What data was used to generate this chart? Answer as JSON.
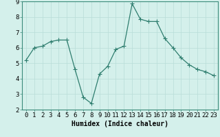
{
  "x": [
    0,
    1,
    2,
    3,
    4,
    5,
    6,
    7,
    8,
    9,
    10,
    11,
    12,
    13,
    14,
    15,
    16,
    17,
    18,
    19,
    20,
    21,
    22,
    23
  ],
  "y": [
    5.2,
    6.0,
    6.1,
    6.4,
    6.5,
    6.5,
    4.6,
    2.8,
    2.4,
    4.3,
    4.8,
    5.9,
    6.1,
    8.85,
    7.85,
    7.7,
    7.7,
    6.6,
    6.0,
    5.35,
    4.9,
    4.6,
    4.45,
    4.2
  ],
  "line_color": "#2e7d6e",
  "marker": "+",
  "marker_size": 4,
  "bg_color": "#d4f0eb",
  "grid_color": "#b8ddd8",
  "xlabel": "Humidex (Indice chaleur)",
  "ylim": [
    2,
    9
  ],
  "xlim_min": -0.5,
  "xlim_max": 23.5,
  "yticks": [
    2,
    3,
    4,
    5,
    6,
    7,
    8,
    9
  ],
  "xticks": [
    0,
    1,
    2,
    3,
    4,
    5,
    6,
    7,
    8,
    9,
    10,
    11,
    12,
    13,
    14,
    15,
    16,
    17,
    18,
    19,
    20,
    21,
    22,
    23
  ],
  "xlabel_fontsize": 7,
  "tick_fontsize": 6.5,
  "linewidth": 0.9,
  "marker_linewidth": 0.8
}
